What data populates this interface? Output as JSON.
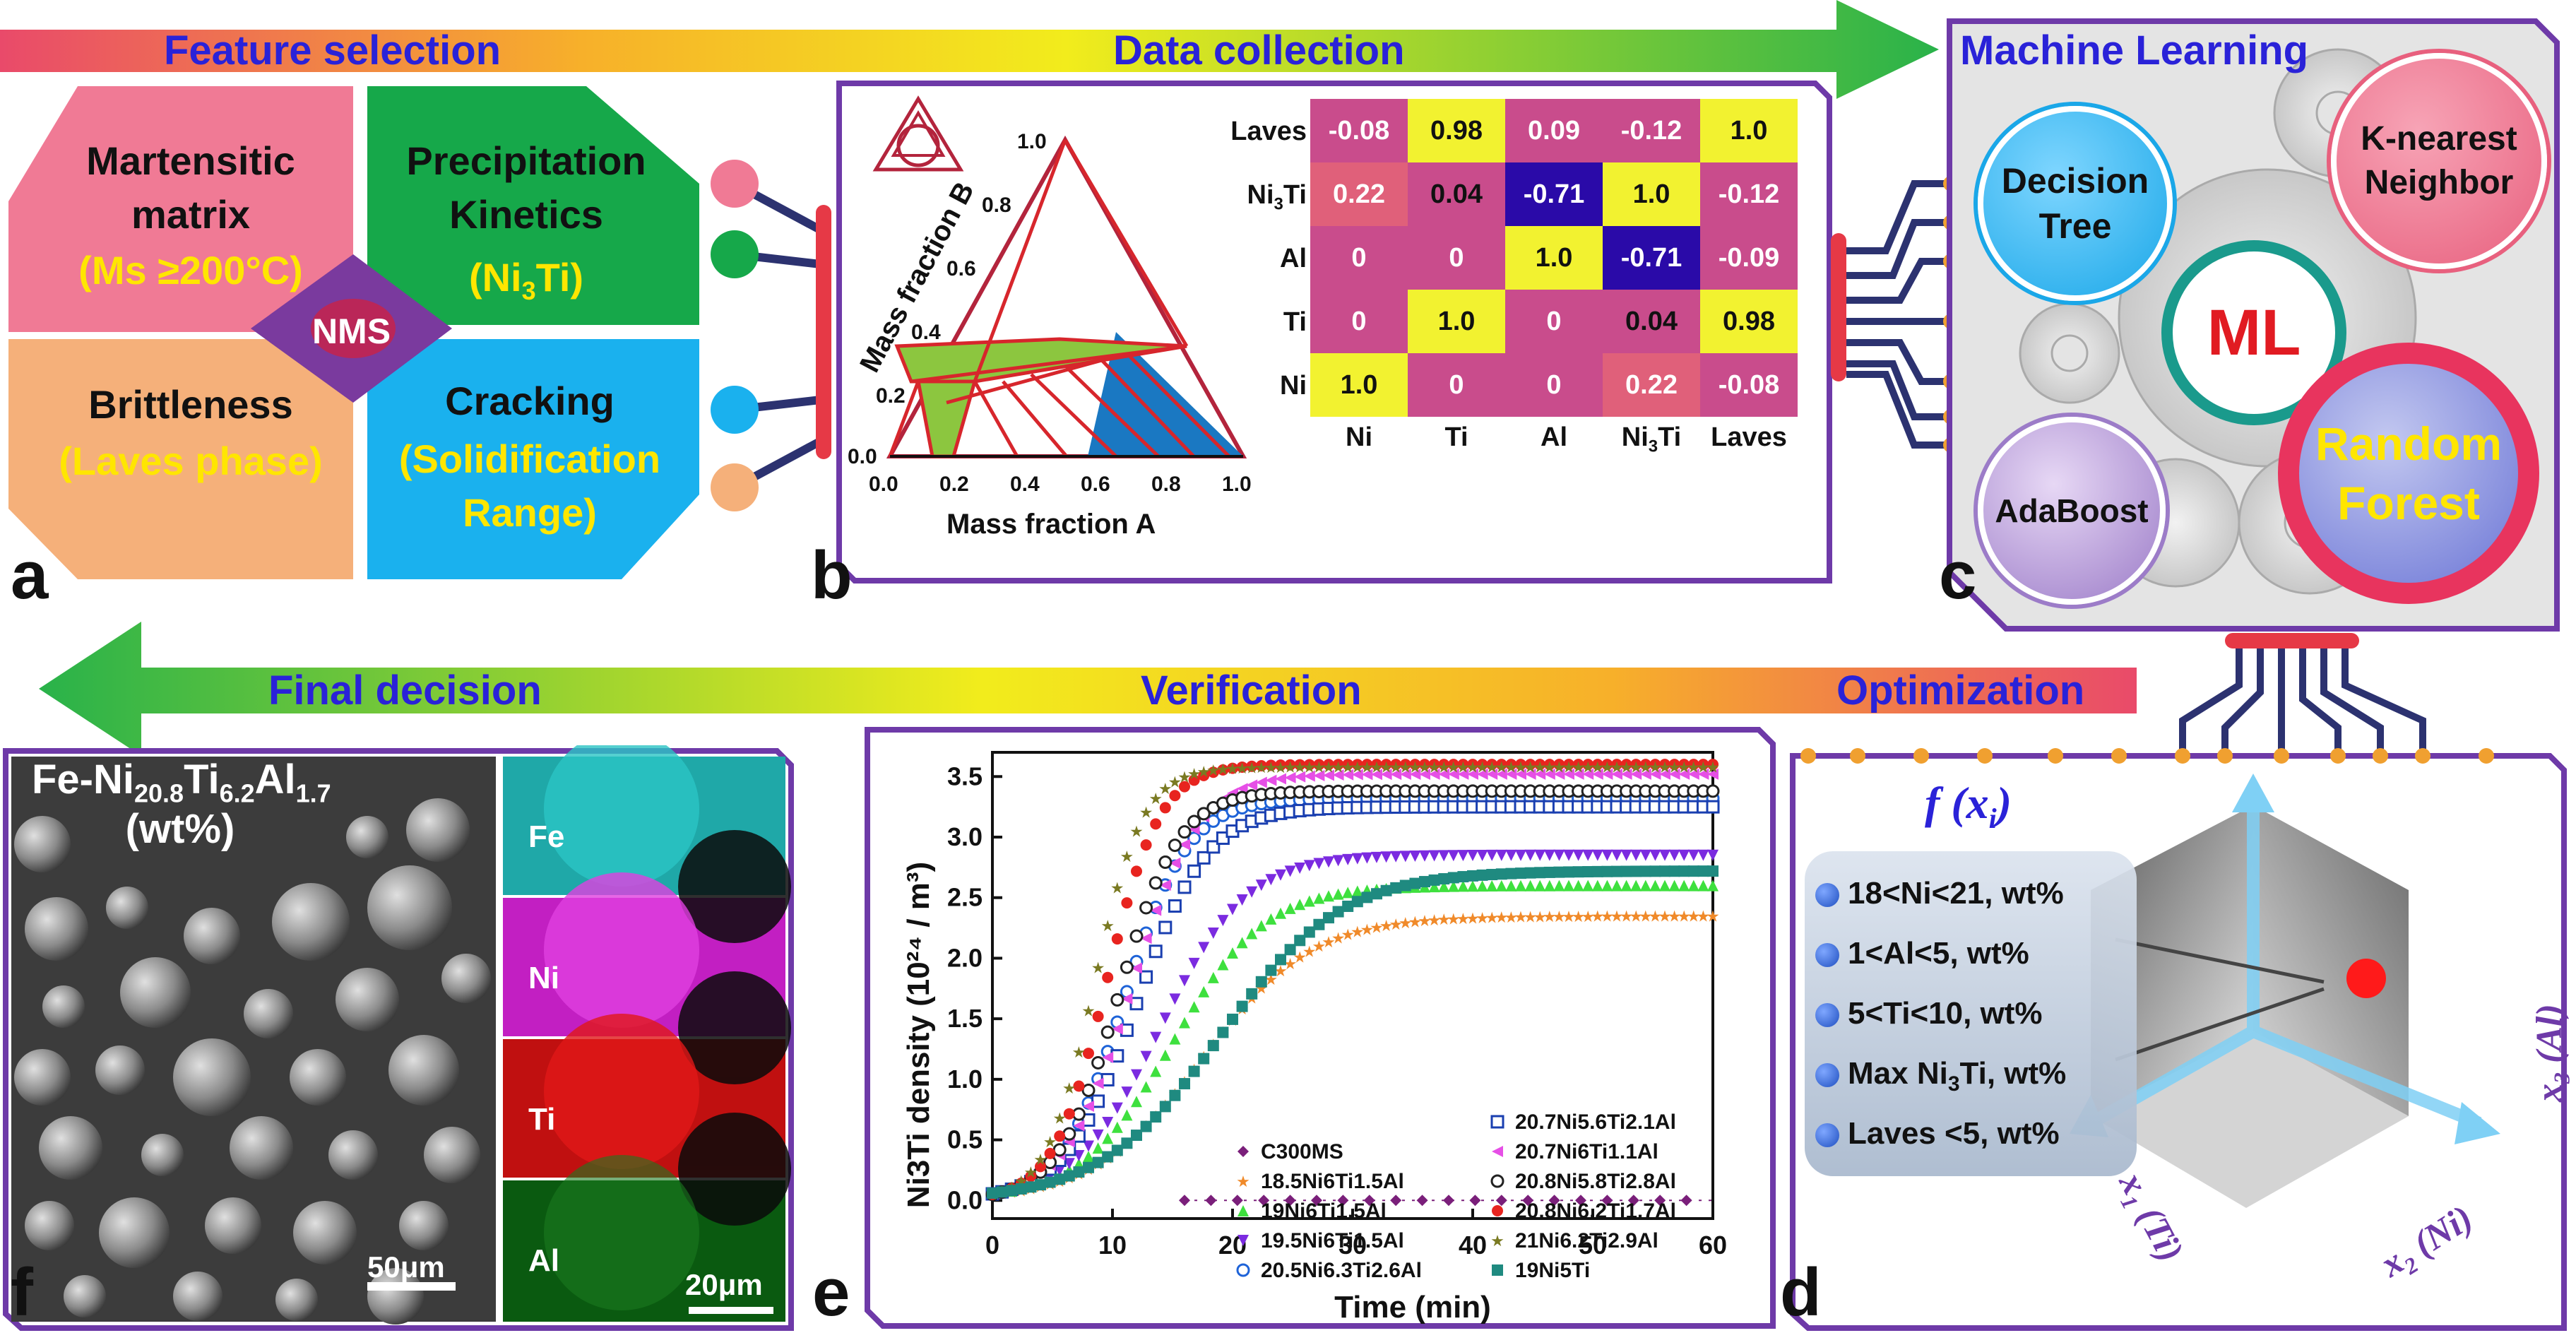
{
  "arrows": {
    "top": {
      "feature_selection": "Feature selection",
      "data_collection": "Data collection",
      "machine_learning": "Machine Learning"
    },
    "bottom": {
      "final_decision": "Final decision",
      "verification": "Verification",
      "optimization": "Optimization"
    }
  },
  "panel_letters": {
    "a": "a",
    "b": "b",
    "c": "c",
    "d": "d",
    "e": "e",
    "f": "f"
  },
  "panel_a": {
    "center": "NMS",
    "martensitic": {
      "title": [
        "Martensitic",
        "matrix"
      ],
      "detail": "(Ms ≥200°C)"
    },
    "precipitation": {
      "title": [
        "Precipitation",
        "Kinetics"
      ],
      "detail_pre": "(Ni",
      "detail_sub": "3",
      "detail_post": "Ti)"
    },
    "brittleness": {
      "title": [
        "Brittleness"
      ],
      "detail": "(Laves phase)"
    },
    "cracking": {
      "title": [
        "Cracking"
      ],
      "detail": [
        "(Solidification",
        "Range)"
      ]
    }
  },
  "panel_b": {
    "ternary": {
      "xlabel": "Mass fraction A",
      "ylabel": "Mass fraction B",
      "xticks": [
        "0.0",
        "0.2",
        "0.4",
        "0.6",
        "0.8",
        "1.0"
      ],
      "yticks": [
        "0.0",
        "0.2",
        "0.4",
        "0.6",
        "0.8",
        "1.0"
      ]
    },
    "heatmap": {
      "rows": [
        "Laves",
        "Ni3Ti",
        "Al",
        "Ti",
        "Ni"
      ],
      "cols": [
        "Ni",
        "Ti",
        "Al",
        "Ni3Ti",
        "Laves"
      ],
      "values": [
        [
          "-0.08",
          "0.98",
          "0.09",
          "-0.12",
          "1.0"
        ],
        [
          "0.22",
          "0.04",
          "-0.71",
          "1.0",
          "-0.12"
        ],
        [
          "0",
          "0",
          "1.0",
          "-0.71",
          "-0.09"
        ],
        [
          "0",
          "1.0",
          "0",
          "0.04",
          "0.98"
        ],
        [
          "1.0",
          "0",
          "0",
          "0.22",
          "-0.08"
        ]
      ],
      "colors": {
        "high": "#f2f230",
        "mid": "#c94c8c",
        "pinkish": "#e0607a",
        "low": "#2a0aa8"
      }
    }
  },
  "panel_c": {
    "center": "ML",
    "models": {
      "decision_tree": [
        "Decision",
        "Tree"
      ],
      "knn": [
        "K-nearest",
        "Neighbor"
      ],
      "adaboost": "AdaBoost",
      "random_forest": [
        "Random",
        "Forest"
      ]
    }
  },
  "panel_d": {
    "function_label": "f (x",
    "function_sub": "i",
    "function_close": ")",
    "constraints": [
      {
        "text": "18<Ni<21, wt%"
      },
      {
        "text": "1<Al<5, wt%"
      },
      {
        "text": "5<Ti<10, wt%"
      },
      {
        "pre": "Max Ni",
        "sub": "3",
        "post": "Ti, wt%"
      },
      {
        "text": "Laves <5, wt%"
      }
    ],
    "axes": {
      "x1": "x",
      "x1_sub": "1",
      "x1_tail": " (Ti)",
      "x2": "x",
      "x2_sub": "2",
      "x2_tail": " (Ni)",
      "x3": "x",
      "x3_sub": "3",
      "x3_tail": " (Al)"
    }
  },
  "panel_e": {
    "ylabel": "Ni3Ti density (10²⁴ / m³)",
    "xlabel": "Time (min)",
    "legend_left": [
      "C300MS",
      "18.5Ni6Ti1.5Al",
      "19Ni6Ti1.5Al",
      "19.5Ni6Ti1.5Al",
      "20.5Ni6.3Ti2.6Al"
    ],
    "legend_right": [
      "20.7Ni5.6Ti2.1Al",
      "20.7Ni6Ti1.1Al",
      "20.8Ni5.8Ti2.8Al",
      "20.8Ni6.2Ti1.7Al",
      "21Ni6.2Ti2.9Al",
      "19Ni5Ti"
    ]
  },
  "panel_f": {
    "title_pre": "Fe-Ni",
    "title_sub1": "20.8",
    "title_mid1": "Ti",
    "title_sub2": "6.2",
    "title_mid2": "Al",
    "title_sub3": "1.7",
    "title_line2": "(wt%)",
    "scale_left": "50μm",
    "scale_right": "20μm",
    "maps": [
      "Fe",
      "Ni",
      "Ti",
      "Al"
    ]
  },
  "chart_data": {
    "type": "line",
    "title": "",
    "xlabel": "Time (min)",
    "ylabel": "Ni3Ti density (10²⁴ / m³)",
    "xlim": [
      0,
      60
    ],
    "ylim": [
      -0.15,
      3.7
    ],
    "xticks": [
      0,
      10,
      20,
      30,
      40,
      50,
      60
    ],
    "yticks": [
      0.0,
      0.5,
      1.0,
      1.5,
      2.0,
      2.5,
      3.0,
      3.5
    ],
    "legend_placement": "bottom-right",
    "series": [
      {
        "name": "C300MS",
        "color": "#7a1f7a",
        "marker": "diamond",
        "plateau": 0.0,
        "t_half": 0,
        "k": 0,
        "x_start": 16
      },
      {
        "name": "18.5Ni6Ti1.5Al",
        "color": "#f08a2a",
        "marker": "star",
        "plateau": 2.35,
        "t_half": 17.5,
        "k": 0.22
      },
      {
        "name": "19Ni6Ti1.5Al",
        "color": "#3ee03e",
        "marker": "triangle-up",
        "plateau": 2.6,
        "t_half": 15.0,
        "k": 0.26
      },
      {
        "name": "19.5Ni6Ti1.5Al",
        "color": "#7b2be0",
        "marker": "triangle-down",
        "plateau": 2.85,
        "t_half": 14.0,
        "k": 0.28
      },
      {
        "name": "20.5Ni6.3Ti2.6Al",
        "color": "#1e63d8",
        "marker": "half-circle",
        "plateau": 3.32,
        "t_half": 11.0,
        "k": 0.38
      },
      {
        "name": "20.7Ni5.6Ti2.1Al",
        "color": "#1a3fb0",
        "marker": "half-square",
        "plateau": 3.25,
        "t_half": 12.0,
        "k": 0.34
      },
      {
        "name": "20.7Ni6Ti1.1Al",
        "color": "#e64fe6",
        "marker": "triangle-left",
        "plateau": 3.52,
        "t_half": 11.5,
        "k": 0.36
      },
      {
        "name": "20.8Ni5.8Ti2.8Al",
        "color": "#222222",
        "marker": "half-circle",
        "plateau": 3.38,
        "t_half": 10.5,
        "k": 0.4
      },
      {
        "name": "20.8Ni6.2Ti1.7Al",
        "color": "#e8241f",
        "marker": "circle",
        "plateau": 3.6,
        "t_half": 9.5,
        "k": 0.45
      },
      {
        "name": "21Ni6.2Ti2.9Al",
        "color": "#7a7a22",
        "marker": "star",
        "plateau": 3.58,
        "t_half": 8.5,
        "k": 0.5
      },
      {
        "name": "19Ni5Ti",
        "color": "#1f8a80",
        "marker": "square",
        "plateau": 2.72,
        "t_half": 19.0,
        "k": 0.2
      }
    ]
  }
}
